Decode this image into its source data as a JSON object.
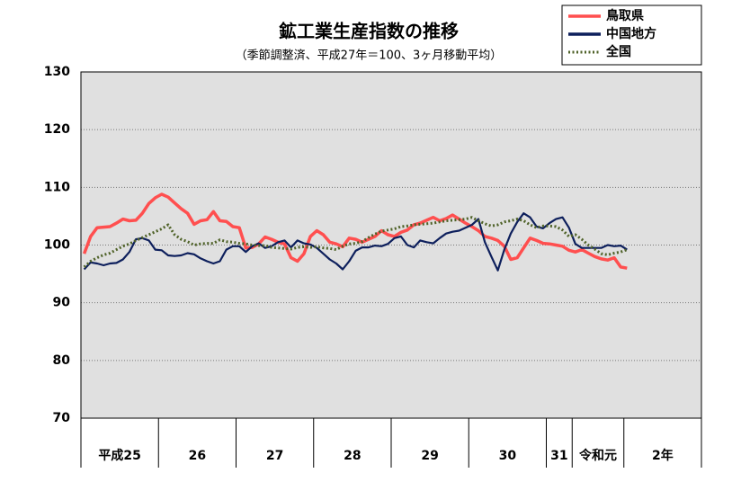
{
  "chart_data": {
    "type": "line",
    "title": "鉱工業生産指数の推移",
    "subtitle": "（季節調整済、平成27年＝100、3ヶ月移動平均）",
    "periods": [
      {
        "label": "平成25",
        "months": 12
      },
      {
        "label": "26",
        "months": 12
      },
      {
        "label": "27",
        "months": 12
      },
      {
        "label": "28",
        "months": 12
      },
      {
        "label": "29",
        "months": 12
      },
      {
        "label": "30",
        "months": 12
      },
      {
        "label": "31",
        "months": 4
      },
      {
        "label": "令和元",
        "months": 8
      },
      {
        "label": "2年",
        "months": 12
      }
    ],
    "ylim": [
      70,
      130
    ],
    "yticks": [
      70,
      80,
      90,
      100,
      110,
      120,
      130
    ],
    "grid": true,
    "series": [
      {
        "name": "鳥取県",
        "color": "#ff4f4f",
        "style": "solid",
        "values": [
          98.5,
          101.5,
          103,
          103.1,
          103.2,
          103.8,
          104.5,
          104.2,
          104.3,
          105.5,
          107.2,
          108.2,
          108.8,
          108.3,
          107.3,
          106.3,
          105.5,
          103.6,
          104.2,
          104.4,
          105.8,
          104.2,
          104.1,
          103.2,
          103,
          99.5,
          99.6,
          100.2,
          101.4,
          101,
          100.5,
          100.2,
          97.8,
          97.2,
          98.5,
          101.5,
          102.5,
          101.8,
          100.5,
          100.2,
          99.7,
          101.2,
          101,
          100.5,
          101,
          101.5,
          102.5,
          101.8,
          101.5,
          102.2,
          102.6,
          103.5,
          103.8,
          104.3,
          104.8,
          104.2,
          104.6,
          105.2,
          104.5,
          103.8,
          103.2,
          102.5,
          101.5,
          101.2,
          100.8,
          99.8,
          97.5,
          97.8,
          99.5,
          101.2,
          100.8,
          100.3,
          100.2,
          100,
          99.8,
          99.1,
          98.8,
          99.2,
          98.6,
          98,
          97.6,
          97.4,
          97.8,
          96.2,
          96
        ]
      },
      {
        "name": "中国地方",
        "color": "#0d1f5c",
        "style": "solid",
        "values": [
          95.8,
          97,
          96.8,
          96.5,
          96.8,
          96.9,
          97.5,
          98.8,
          101,
          101.2,
          100.8,
          99.2,
          99.1,
          98.2,
          98.1,
          98.2,
          98.6,
          98.4,
          97.7,
          97.2,
          96.8,
          97.2,
          99.2,
          99.8,
          99.8,
          98.8,
          99.8,
          100.3,
          99.5,
          99.8,
          100.5,
          100.8,
          99.6,
          100.8,
          100.3,
          100.1,
          99.5,
          98.5,
          97.5,
          96.8,
          95.8,
          97.2,
          99,
          99.6,
          99.6,
          99.9,
          99.8,
          100.2,
          101.2,
          101.5,
          100,
          99.6,
          100.8,
          100.5,
          100.3,
          101.2,
          102,
          102.3,
          102.5,
          103,
          103.5,
          104.5,
          100.5,
          98,
          95.6,
          99.2,
          102,
          104,
          105.5,
          104.8,
          103.2,
          102.9,
          103.8,
          104.5,
          104.8,
          103,
          100.2,
          99.5,
          99.5,
          99.5,
          99.5,
          100,
          99.8,
          99.9,
          99.2
        ]
      },
      {
        "name": "全国",
        "color": "#4f6228",
        "style": "dotted",
        "values": [
          96.2,
          97.2,
          97.8,
          98.3,
          98.6,
          99.2,
          99.8,
          100.2,
          100.8,
          101.3,
          101.8,
          102.3,
          102.8,
          103.5,
          101.8,
          101,
          100.6,
          100,
          100.2,
          100.3,
          100.3,
          100.9,
          100.6,
          100.5,
          100.3,
          100.2,
          100,
          99.9,
          99.9,
          99.6,
          99.5,
          99.4,
          99.3,
          99.6,
          99.7,
          99.6,
          99.7,
          99.5,
          99.4,
          99.2,
          99.8,
          100.2,
          100.3,
          100.6,
          101.3,
          101.9,
          102.4,
          102.6,
          102.8,
          103.2,
          103.3,
          103.5,
          103.6,
          103.7,
          103.8,
          104,
          104.2,
          104.3,
          104.4,
          104.5,
          104.8,
          104.2,
          103.7,
          103.3,
          103.5,
          104,
          104.2,
          104.5,
          104.2,
          103.5,
          103,
          103.3,
          103.3,
          103.2,
          102.6,
          101.5,
          101.8,
          101,
          100,
          99.3,
          98.5,
          98.3,
          98.6,
          98.8,
          99.2
        ]
      }
    ]
  }
}
